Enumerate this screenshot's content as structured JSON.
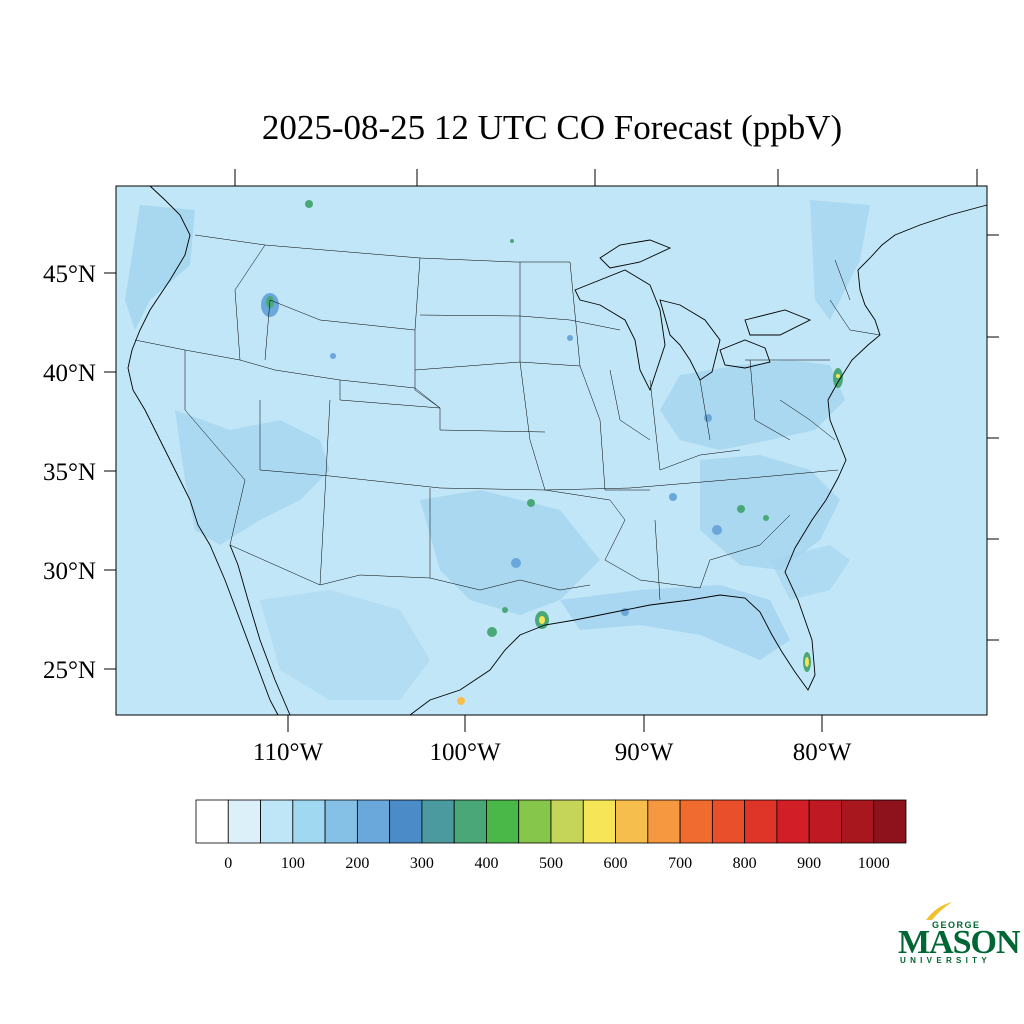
{
  "title": "2025-08-25 12 UTC CO Forecast (ppbV)",
  "lat_labels": [
    "45°N",
    "40°N",
    "35°N",
    "30°N",
    "25°N"
  ],
  "lon_labels": [
    "110°W",
    "100°W",
    "90°W",
    "80°W"
  ],
  "colorbar": {
    "labels": [
      "0",
      "100",
      "200",
      "300",
      "400",
      "500",
      "600",
      "700",
      "800",
      "900",
      "1000"
    ],
    "colors": [
      "#ffffff",
      "#dcf0fa",
      "#bfe6f7",
      "#a0d8f2",
      "#85c0e6",
      "#6aa7da",
      "#4a8bc8",
      "#4a9aa0",
      "#4aa878",
      "#4ab848",
      "#86c64a",
      "#c4d55a",
      "#f6e557",
      "#f6bf4d",
      "#f5983f",
      "#f06c2e",
      "#e84f2a",
      "#de3528",
      "#d21f27",
      "#bf1a23",
      "#a8161e",
      "#8e121b"
    ]
  },
  "map": {
    "land_color": "#c0e6f7",
    "ocean_color": "#c0e6f7",
    "plume_color": "#a3d3ef",
    "hotspot_colors": {
      "moderate": "#6aa7da",
      "high": "#4aa878",
      "peak": "#f6e557"
    }
  },
  "logo": {
    "top": "GEORGE",
    "main": "MASON",
    "sub": "UNIVERSITY"
  }
}
